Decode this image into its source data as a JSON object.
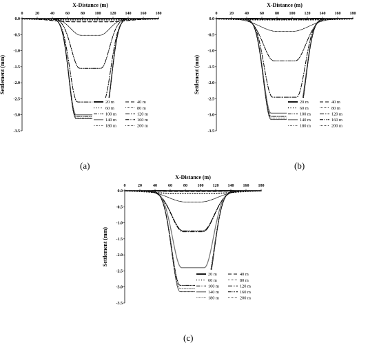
{
  "chart_data": [
    {
      "type": "line",
      "panel_label": "(a)",
      "xlabel": "X-Distance (m)",
      "ylabel": "Settlement (mm)",
      "xlim": [
        0,
        180
      ],
      "ylim": [
        -3.5,
        0
      ],
      "x_ticks": [
        "0",
        "20",
        "40",
        "60",
        "80",
        "100",
        "120",
        "140",
        "160",
        "180"
      ],
      "y_ticks": [
        "0.0",
        "-0.5",
        "-1.0",
        "-1.5",
        "-2.0",
        "-2.5",
        "-3.0",
        "-3.5"
      ],
      "x_axis_position": "top",
      "legend_position": "bottom-right",
      "series": [
        {
          "name": "20 m",
          "style": "solid-thick",
          "max_settlement": 0.002,
          "plateau_width": 60,
          "spread": 14
        },
        {
          "name": "40 m",
          "style": "dash",
          "max_settlement": 0.1,
          "plateau_width": 50,
          "spread": 25
        },
        {
          "name": "60 m",
          "style": "dot",
          "max_settlement": 0.04,
          "plateau_width": 60,
          "spread": 40
        },
        {
          "name": "80 m",
          "style": "dot-fine",
          "max_settlement": 0.52,
          "plateau_width": 25,
          "spread": 13
        },
        {
          "name": "100 m",
          "style": "dash-dot-dot",
          "max_settlement": 1.55,
          "plateau_width": 28,
          "spread": 11
        },
        {
          "name": "120 m",
          "style": "dash-dot",
          "max_settlement": 2.6,
          "plateau_width": 34,
          "spread": 10
        },
        {
          "name": "140 m",
          "style": "solid-gray",
          "max_settlement": 3.0,
          "plateau_width": 38,
          "spread": 9
        },
        {
          "name": "160 m",
          "style": "dash-dot-dot",
          "max_settlement": 3.05,
          "plateau_width": 38,
          "spread": 9
        },
        {
          "name": "180 m",
          "style": "dot-dash",
          "max_settlement": 3.1,
          "plateau_width": 38,
          "spread": 9
        },
        {
          "name": "200 m",
          "style": "dot-fine",
          "max_settlement": 3.12,
          "plateau_width": 38,
          "spread": 9
        }
      ]
    },
    {
      "type": "line",
      "panel_label": "(b)",
      "xlabel": "X-Distance (m)",
      "ylabel": "Settlement (mm)",
      "xlim": [
        0,
        180
      ],
      "ylim": [
        -3.5,
        0
      ],
      "x_ticks": [
        "0",
        "20",
        "40",
        "60",
        "80",
        "100",
        "120",
        "140",
        "160",
        "180"
      ],
      "y_ticks": [
        "0.0",
        "-0.5",
        "-1.0",
        "-1.5",
        "-2.0",
        "-2.5",
        "-3.0",
        "-3.5"
      ],
      "x_axis_position": "top",
      "legend_position": "bottom-right",
      "series": [
        {
          "name": "20 m",
          "style": "solid-thick",
          "max_settlement": 0.002,
          "plateau_width": 60,
          "spread": 14
        },
        {
          "name": "40 m",
          "style": "dash",
          "max_settlement": 0.02,
          "plateau_width": 50,
          "spread": 25
        },
        {
          "name": "60 m",
          "style": "dot",
          "max_settlement": 0.04,
          "plateau_width": 60,
          "spread": 40
        },
        {
          "name": "80 m",
          "style": "dot-fine",
          "max_settlement": 0.4,
          "plateau_width": 20,
          "spread": 22
        },
        {
          "name": "100 m",
          "style": "dash-dot-dot",
          "max_settlement": 1.32,
          "plateau_width": 28,
          "spread": 14
        },
        {
          "name": "120 m",
          "style": "dash-dot",
          "max_settlement": 2.45,
          "plateau_width": 32,
          "spread": 11
        },
        {
          "name": "140 m",
          "style": "solid-gray",
          "max_settlement": 2.95,
          "plateau_width": 36,
          "spread": 10
        },
        {
          "name": "160 m",
          "style": "dash-dot-dot",
          "max_settlement": 3.05,
          "plateau_width": 36,
          "spread": 10
        },
        {
          "name": "180 m",
          "style": "dot-dash",
          "max_settlement": 3.1,
          "plateau_width": 36,
          "spread": 10
        },
        {
          "name": "200 m",
          "style": "dot-fine",
          "max_settlement": 3.15,
          "plateau_width": 36,
          "spread": 10
        }
      ]
    },
    {
      "type": "line",
      "panel_label": "(c)",
      "xlabel": "X-Distance (m)",
      "ylabel": "Settlement (mm)",
      "xlim": [
        0,
        180
      ],
      "ylim": [
        -3.5,
        0
      ],
      "x_ticks": [
        "0",
        "20",
        "40",
        "60",
        "80",
        "100",
        "120",
        "140",
        "160",
        "180"
      ],
      "y_ticks": [
        "0.0",
        "-0.5",
        "-1.0",
        "-1.5",
        "-2.0",
        "-2.5",
        "-3.0",
        "-3.5"
      ],
      "x_axis_position": "top",
      "legend_position": "bottom-right",
      "series": [
        {
          "name": "20 m",
          "style": "solid-thick",
          "max_settlement": 0.002,
          "plateau_width": 60,
          "spread": 14
        },
        {
          "name": "40 m",
          "style": "dash",
          "max_settlement": 0.02,
          "plateau_width": 50,
          "spread": 25
        },
        {
          "name": "60 m",
          "style": "dot",
          "max_settlement": 0.08,
          "plateau_width": 50,
          "spread": 30
        },
        {
          "name": "80 m",
          "style": "dot-fine",
          "max_settlement": 0.35,
          "plateau_width": 20,
          "spread": 22
        },
        {
          "name": "100 m",
          "style": "dash-dot-dot",
          "max_settlement": 1.25,
          "plateau_width": 26,
          "spread": 15
        },
        {
          "name": "120 m",
          "style": "dash-dot",
          "max_settlement": 1.28,
          "plateau_width": 26,
          "spread": 15
        },
        {
          "name": "140 m",
          "style": "solid-gray",
          "max_settlement": 2.4,
          "plateau_width": 30,
          "spread": 12
        },
        {
          "name": "160 m",
          "style": "dash-dot-dot",
          "max_settlement": 2.95,
          "plateau_width": 34,
          "spread": 11
        },
        {
          "name": "180 m",
          "style": "dot-dash",
          "max_settlement": 3.05,
          "plateau_width": 34,
          "spread": 11
        },
        {
          "name": "200 m",
          "style": "dot-fine",
          "max_settlement": 3.15,
          "plateau_width": 34,
          "spread": 11
        }
      ]
    }
  ]
}
